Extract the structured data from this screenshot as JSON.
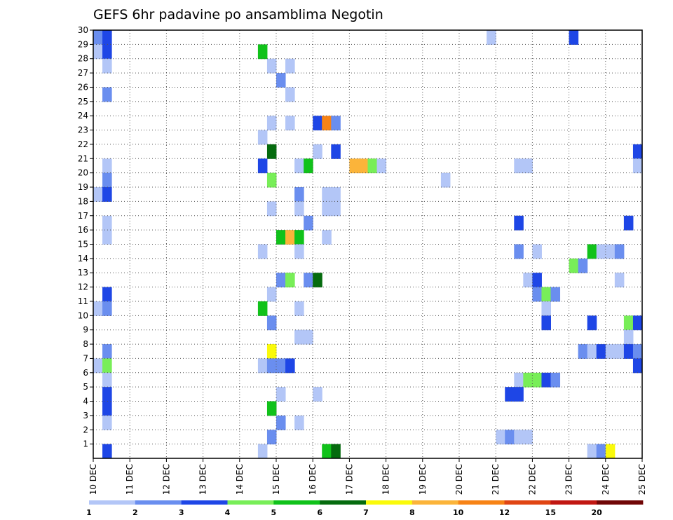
{
  "chart_data": {
    "type": "heatmap",
    "title": "GEFS 6hr padavine po ansamblima Negotin",
    "xlabel": "",
    "ylabel": "",
    "x_ticks": [
      "10 DEC",
      "11 DEC",
      "12 DEC",
      "13 DEC",
      "14 DEC",
      "15 DEC",
      "16 DEC",
      "17 DEC",
      "18 DEC",
      "19 DEC",
      "20 DEC",
      "21 DEC",
      "22 DEC",
      "23 DEC",
      "24 DEC",
      "25 DEC"
    ],
    "y_ticks": [
      "1",
      "2",
      "3",
      "4",
      "5",
      "6",
      "7",
      "8",
      "9",
      "10",
      "11",
      "12",
      "13",
      "14",
      "15",
      "16",
      "17",
      "18",
      "19",
      "20",
      "21",
      "22",
      "23",
      "24",
      "25",
      "26",
      "27",
      "28",
      "29",
      "30"
    ],
    "xlim": [
      0,
      60
    ],
    "ylim": [
      0,
      30
    ],
    "grid": true,
    "colorbar": {
      "colors": [
        "#b3c6f7",
        "#6a8eef",
        "#1e46e6",
        "#78ee58",
        "#10c21a",
        "#056b0e",
        "#fafa0a",
        "#fbb43a",
        "#f78316",
        "#e04513",
        "#c11712",
        "#700606"
      ],
      "labels": [
        "1",
        "2",
        "3",
        "4",
        "5",
        "6",
        "7",
        "8",
        "10",
        "12",
        "15",
        "20"
      ]
    },
    "cells": [
      {
        "t": 0,
        "m": 29,
        "v": 2
      },
      {
        "t": 1,
        "m": 29,
        "v": 3
      },
      {
        "t": 0,
        "m": 28,
        "v": 1
      },
      {
        "t": 1,
        "m": 28,
        "v": 3
      },
      {
        "t": 1,
        "m": 27,
        "v": 1
      },
      {
        "t": 1,
        "m": 25,
        "v": 2
      },
      {
        "t": 1,
        "m": 20,
        "v": 1
      },
      {
        "t": 1,
        "m": 19,
        "v": 2
      },
      {
        "t": 0,
        "m": 18,
        "v": 1
      },
      {
        "t": 1,
        "m": 18,
        "v": 3
      },
      {
        "t": 1,
        "m": 16,
        "v": 1
      },
      {
        "t": 1,
        "m": 15,
        "v": 1
      },
      {
        "t": 1,
        "m": 11,
        "v": 3
      },
      {
        "t": 0,
        "m": 10,
        "v": 1
      },
      {
        "t": 1,
        "m": 10,
        "v": 2
      },
      {
        "t": 1,
        "m": 7,
        "v": 2
      },
      {
        "t": 0,
        "m": 6,
        "v": 1
      },
      {
        "t": 1,
        "m": 6,
        "v": 4
      },
      {
        "t": 1,
        "m": 5,
        "v": 1
      },
      {
        "t": 1,
        "m": 4,
        "v": 3
      },
      {
        "t": 1,
        "m": 3,
        "v": 3
      },
      {
        "t": 1,
        "m": 2,
        "v": 1
      },
      {
        "t": 1,
        "m": 0,
        "v": 3
      },
      {
        "t": 18,
        "m": 28,
        "v": 5
      },
      {
        "t": 19,
        "m": 27,
        "v": 1
      },
      {
        "t": 21,
        "m": 27,
        "v": 1
      },
      {
        "t": 20,
        "m": 26,
        "v": 2
      },
      {
        "t": 21,
        "m": 25,
        "v": 1
      },
      {
        "t": 19,
        "m": 23,
        "v": 1
      },
      {
        "t": 21,
        "m": 23,
        "v": 1
      },
      {
        "t": 18,
        "m": 22,
        "v": 1
      },
      {
        "t": 19,
        "m": 21,
        "v": 6
      },
      {
        "t": 18,
        "m": 20,
        "v": 3
      },
      {
        "t": 22,
        "m": 20,
        "v": 1
      },
      {
        "t": 23,
        "m": 20,
        "v": 5
      },
      {
        "t": 19,
        "m": 19,
        "v": 4
      },
      {
        "t": 22,
        "m": 18,
        "v": 2
      },
      {
        "t": 19,
        "m": 17,
        "v": 1
      },
      {
        "t": 22,
        "m": 17,
        "v": 1
      },
      {
        "t": 23,
        "m": 16,
        "v": 2
      },
      {
        "t": 20,
        "m": 15,
        "v": 5
      },
      {
        "t": 21,
        "m": 15,
        "v": 8
      },
      {
        "t": 22,
        "m": 15,
        "v": 5
      },
      {
        "t": 18,
        "m": 14,
        "v": 1
      },
      {
        "t": 22,
        "m": 14,
        "v": 1
      },
      {
        "t": 20,
        "m": 12,
        "v": 2
      },
      {
        "t": 21,
        "m": 12,
        "v": 4
      },
      {
        "t": 19,
        "m": 11,
        "v": 1
      },
      {
        "t": 18,
        "m": 10,
        "v": 5
      },
      {
        "t": 22,
        "m": 10,
        "v": 1
      },
      {
        "t": 19,
        "m": 9,
        "v": 2
      },
      {
        "t": 22,
        "m": 8,
        "v": 1
      },
      {
        "t": 23,
        "m": 8,
        "v": 1
      },
      {
        "t": 19,
        "m": 7,
        "v": 7
      },
      {
        "t": 18,
        "m": 6,
        "v": 1
      },
      {
        "t": 19,
        "m": 6,
        "v": 2
      },
      {
        "t": 20,
        "m": 6,
        "v": 2
      },
      {
        "t": 21,
        "m": 6,
        "v": 3
      },
      {
        "t": 20,
        "m": 4,
        "v": 1
      },
      {
        "t": 19,
        "m": 3,
        "v": 5
      },
      {
        "t": 20,
        "m": 2,
        "v": 2
      },
      {
        "t": 22,
        "m": 2,
        "v": 1
      },
      {
        "t": 19,
        "m": 1,
        "v": 2
      },
      {
        "t": 18,
        "m": 0,
        "v": 1
      },
      {
        "t": 24,
        "m": 23,
        "v": 3
      },
      {
        "t": 25,
        "m": 23,
        "v": 9
      },
      {
        "t": 26,
        "m": 23,
        "v": 2
      },
      {
        "t": 24,
        "m": 21,
        "v": 1
      },
      {
        "t": 26,
        "m": 21,
        "v": 3
      },
      {
        "t": 28,
        "m": 20,
        "v": 8
      },
      {
        "t": 29,
        "m": 20,
        "v": 8
      },
      {
        "t": 30,
        "m": 20,
        "v": 4
      },
      {
        "t": 31,
        "m": 20,
        "v": 1
      },
      {
        "t": 25,
        "m": 18,
        "v": 1
      },
      {
        "t": 26,
        "m": 18,
        "v": 1
      },
      {
        "t": 25,
        "m": 17,
        "v": 1
      },
      {
        "t": 26,
        "m": 17,
        "v": 1
      },
      {
        "t": 25,
        "m": 15,
        "v": 1
      },
      {
        "t": 23,
        "m": 12,
        "v": 2
      },
      {
        "t": 24,
        "m": 12,
        "v": 6
      },
      {
        "t": 24,
        "m": 4,
        "v": 1
      },
      {
        "t": 25,
        "m": 0,
        "v": 5
      },
      {
        "t": 26,
        "m": 0,
        "v": 6
      },
      {
        "t": 43,
        "m": 29,
        "v": 1
      },
      {
        "t": 52,
        "m": 29,
        "v": 3
      },
      {
        "t": 38,
        "m": 19,
        "v": 1
      },
      {
        "t": 46,
        "m": 20,
        "v": 1
      },
      {
        "t": 47,
        "m": 20,
        "v": 1
      },
      {
        "t": 59,
        "m": 21,
        "v": 3
      },
      {
        "t": 59,
        "m": 20,
        "v": 1
      },
      {
        "t": 46,
        "m": 16,
        "v": 3
      },
      {
        "t": 58,
        "m": 16,
        "v": 3
      },
      {
        "t": 46,
        "m": 14,
        "v": 2
      },
      {
        "t": 48,
        "m": 14,
        "v": 1
      },
      {
        "t": 54,
        "m": 14,
        "v": 5
      },
      {
        "t": 55,
        "m": 14,
        "v": 1
      },
      {
        "t": 56,
        "m": 14,
        "v": 1
      },
      {
        "t": 57,
        "m": 14,
        "v": 2
      },
      {
        "t": 52,
        "m": 13,
        "v": 4
      },
      {
        "t": 53,
        "m": 13,
        "v": 2
      },
      {
        "t": 47,
        "m": 12,
        "v": 1
      },
      {
        "t": 48,
        "m": 12,
        "v": 3
      },
      {
        "t": 57,
        "m": 12,
        "v": 1
      },
      {
        "t": 48,
        "m": 11,
        "v": 2
      },
      {
        "t": 49,
        "m": 11,
        "v": 4
      },
      {
        "t": 50,
        "m": 11,
        "v": 2
      },
      {
        "t": 49,
        "m": 10,
        "v": 1
      },
      {
        "t": 49,
        "m": 9,
        "v": 3
      },
      {
        "t": 54,
        "m": 9,
        "v": 3
      },
      {
        "t": 58,
        "m": 9,
        "v": 4
      },
      {
        "t": 59,
        "m": 9,
        "v": 3
      },
      {
        "t": 58,
        "m": 8,
        "v": 1
      },
      {
        "t": 53,
        "m": 7,
        "v": 2
      },
      {
        "t": 54,
        "m": 7,
        "v": 1
      },
      {
        "t": 55,
        "m": 7,
        "v": 3
      },
      {
        "t": 56,
        "m": 7,
        "v": 1
      },
      {
        "t": 57,
        "m": 7,
        "v": 1
      },
      {
        "t": 58,
        "m": 7,
        "v": 3
      },
      {
        "t": 59,
        "m": 7,
        "v": 2
      },
      {
        "t": 59,
        "m": 6,
        "v": 3
      },
      {
        "t": 46,
        "m": 5,
        "v": 1
      },
      {
        "t": 47,
        "m": 5,
        "v": 4
      },
      {
        "t": 48,
        "m": 5,
        "v": 4
      },
      {
        "t": 49,
        "m": 5,
        "v": 3
      },
      {
        "t": 50,
        "m": 5,
        "v": 2
      },
      {
        "t": 45,
        "m": 4,
        "v": 3
      },
      {
        "t": 46,
        "m": 4,
        "v": 3
      },
      {
        "t": 44,
        "m": 1,
        "v": 1
      },
      {
        "t": 45,
        "m": 1,
        "v": 2
      },
      {
        "t": 46,
        "m": 1,
        "v": 1
      },
      {
        "t": 47,
        "m": 1,
        "v": 1
      },
      {
        "t": 54,
        "m": 0,
        "v": 1
      },
      {
        "t": 55,
        "m": 0,
        "v": 2
      },
      {
        "t": 56,
        "m": 0,
        "v": 7
      }
    ]
  }
}
